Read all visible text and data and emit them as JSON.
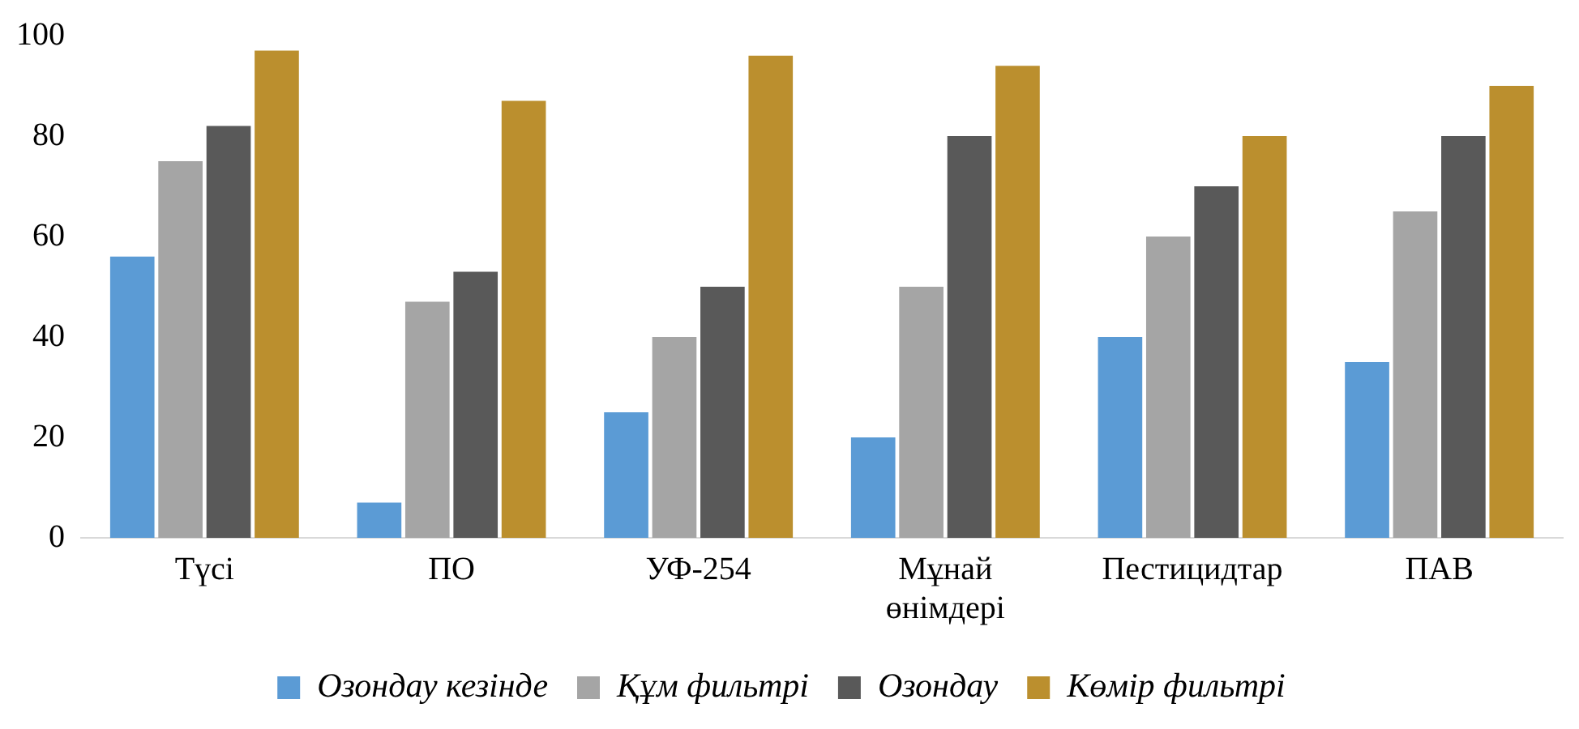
{
  "chart_data": {
    "type": "bar",
    "categories": [
      "Түсі",
      "ПО",
      "УФ-254",
      "Мұнай өнімдері",
      "Пестицидтар",
      "ПАВ"
    ],
    "series": [
      {
        "name": "Озондау кезінде",
        "color": "#5b9bd5",
        "values": [
          56,
          7,
          25,
          20,
          40,
          35
        ]
      },
      {
        "name": "Құм фильтрі",
        "color": "#a5a5a5",
        "values": [
          75,
          47,
          40,
          50,
          60,
          65
        ]
      },
      {
        "name": "Озондау",
        "color": "#595959",
        "values": [
          82,
          53,
          50,
          80,
          70,
          80
        ]
      },
      {
        "name": "Көмір фильтрі",
        "color": "#bb8f2e",
        "values": [
          97,
          87,
          96,
          94,
          80,
          90
        ]
      }
    ],
    "ylim": [
      0,
      100
    ],
    "yticks": [
      0,
      20,
      40,
      60,
      80,
      100
    ],
    "grid": false,
    "legend": "bottom"
  }
}
